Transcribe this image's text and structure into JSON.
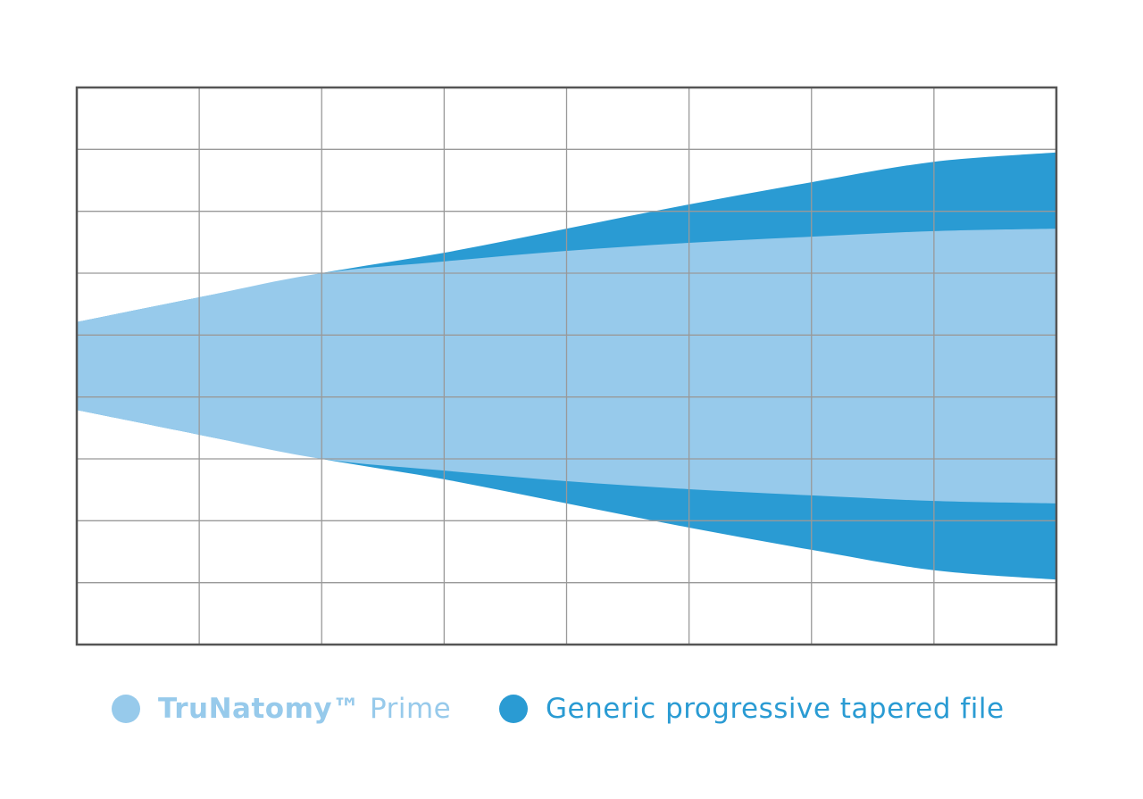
{
  "chart_data": {
    "type": "area",
    "title": "",
    "xlabel": "",
    "ylabel": "",
    "xlim": [
      0,
      8
    ],
    "ylim": [
      0,
      9
    ],
    "grid": true,
    "tick_labels_shown": false,
    "legend_placement": "bottom",
    "x": [
      0,
      1,
      2,
      3,
      4,
      5,
      6,
      7,
      8
    ],
    "series": [
      {
        "name": "Generic progressive tapered file",
        "color": "#2A9BD3",
        "upper": [
          5.21,
          5.61,
          6.0,
          6.33,
          6.72,
          7.11,
          7.47,
          7.8,
          7.95
        ],
        "lower": [
          3.79,
          3.39,
          3.0,
          2.67,
          2.28,
          1.89,
          1.53,
          1.2,
          1.05
        ]
      },
      {
        "name": "TruNatomy™ Prime",
        "color": "#97CAEB",
        "upper": [
          5.21,
          5.61,
          6.0,
          6.19,
          6.36,
          6.49,
          6.59,
          6.68,
          6.72
        ],
        "lower": [
          3.79,
          3.39,
          3.0,
          2.81,
          2.64,
          2.51,
          2.41,
          2.32,
          2.28
        ]
      }
    ]
  },
  "legend": {
    "items": [
      {
        "brand": "TruNatomy™",
        "rest": " Prime",
        "color": "#97CAEB"
      },
      {
        "brand": "",
        "rest": "Generic progressive tapered file",
        "color": "#2A9BD3"
      }
    ]
  },
  "colors": {
    "grid": "#999999",
    "border": "#555555"
  }
}
